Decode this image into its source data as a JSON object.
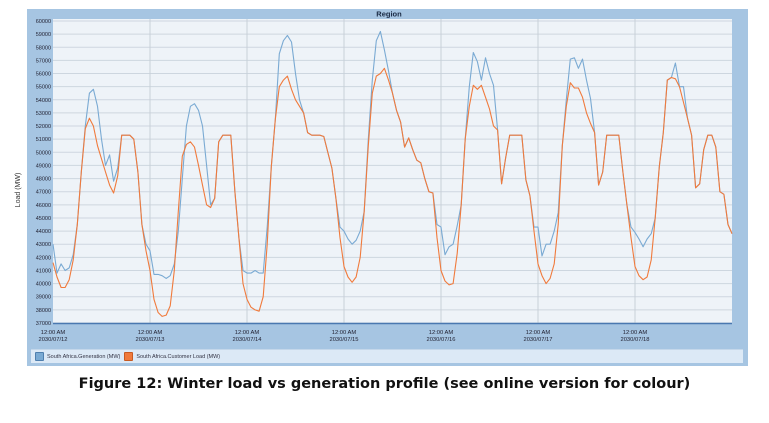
{
  "caption": "Figure 12: Winter load vs generation profile (see online version for colour)",
  "chart_data": {
    "type": "line",
    "title": "Region",
    "xlabel": "",
    "ylabel": "Load (MW)",
    "ylim": [
      37000,
      60000
    ],
    "y_ticks": [
      37000,
      38000,
      39000,
      40000,
      41000,
      42000,
      43000,
      44000,
      45000,
      46000,
      47000,
      48000,
      49000,
      50000,
      51000,
      52000,
      53000,
      54000,
      55000,
      56000,
      57000,
      58000,
      59000,
      60000
    ],
    "x_unit": "hours since 2030/07/12 12:00 AM",
    "xlim": [
      0,
      168
    ],
    "x_ticks": [
      {
        "hour": 0,
        "time": "12:00 AM",
        "date": "2030/07/12"
      },
      {
        "hour": 24,
        "time": "12:00 AM",
        "date": "2030/07/13"
      },
      {
        "hour": 48,
        "time": "12:00 AM",
        "date": "2030/07/14"
      },
      {
        "hour": 72,
        "time": "12:00 AM",
        "date": "2030/07/15"
      },
      {
        "hour": 96,
        "time": "12:00 AM",
        "date": "2030/07/16"
      },
      {
        "hour": 120,
        "time": "12:00 AM",
        "date": "2030/07/17"
      },
      {
        "hour": 144,
        "time": "12:00 AM",
        "date": "2030/07/18"
      }
    ],
    "grid": true,
    "legend_position": "bottom",
    "series": [
      {
        "name": "South Africa.Generation (MW)",
        "color": "#7aaad3",
        "values": [
          43000,
          40800,
          41500,
          41000,
          41200,
          42200,
          44500,
          48500,
          52000,
          54500,
          54800,
          53500,
          51000,
          49000,
          49800,
          47800,
          48800,
          51300,
          51300,
          51300,
          51000,
          48500,
          44500,
          43000,
          42500,
          40700,
          40700,
          40600,
          40400,
          40600,
          41500,
          44000,
          48000,
          52000,
          53500,
          53700,
          53200,
          52000,
          49000,
          46000,
          46500,
          50800,
          51300,
          51300,
          51300,
          47000,
          43500,
          41000,
          40800,
          40800,
          41000,
          40800,
          40800,
          44300,
          48900,
          52500,
          57500,
          58500,
          58900,
          58400,
          56000,
          54000,
          53000,
          51500,
          51300,
          51300,
          51300,
          51200,
          50000,
          48800,
          46500,
          44300,
          44000,
          43400,
          43000,
          43300,
          44000,
          45500,
          51000,
          55500,
          58500,
          59200,
          57800,
          56200,
          54500,
          53200,
          52300,
          50400,
          51100,
          50200,
          49400,
          49200,
          48000,
          47000,
          46900,
          44500,
          44300,
          42200,
          42800,
          43000,
          44400,
          46000,
          51000,
          55000,
          57600,
          56900,
          55500,
          57200,
          56000,
          55100,
          51700,
          47600,
          49600,
          51300,
          51300,
          51300,
          51300,
          47900,
          46700,
          44300,
          44300,
          42100,
          43000,
          43000,
          44000,
          45400,
          50500,
          54000,
          57100,
          57200,
          56400,
          57100,
          55500,
          54100,
          51500,
          47500,
          48500,
          51300,
          51300,
          51300,
          51300,
          48500,
          46000,
          44300,
          43900,
          43400,
          42800,
          43400,
          43800,
          45000,
          48900,
          51500,
          55500,
          55700,
          56800,
          55000,
          55000,
          52600,
          51300,
          47300,
          47600,
          50200,
          51300,
          51300,
          50400,
          47000,
          46800,
          44500,
          43800
        ]
      },
      {
        "name": "South Africa.Customer Load (MW)",
        "color": "#f07a3c",
        "values": [
          41600,
          40500,
          39700,
          39700,
          40300,
          41800,
          44500,
          48500,
          51800,
          52600,
          52000,
          50500,
          49500,
          48500,
          47500,
          46900,
          48200,
          51300,
          51300,
          51300,
          51000,
          48500,
          44500,
          42500,
          41000,
          38800,
          37800,
          37500,
          37600,
          38300,
          41000,
          45500,
          49700,
          50600,
          50800,
          50400,
          49000,
          47500,
          46000,
          45800,
          46500,
          50800,
          51300,
          51300,
          51300,
          47000,
          43500,
          40000,
          38800,
          38200,
          38000,
          37900,
          39000,
          43000,
          48900,
          52500,
          55000,
          55500,
          55800,
          54800,
          54000,
          53500,
          53000,
          51500,
          51300,
          51300,
          51300,
          51200,
          50000,
          48800,
          46500,
          43500,
          41300,
          40500,
          40100,
          40500,
          42000,
          45500,
          50500,
          54500,
          55800,
          56000,
          56400,
          55500,
          54500,
          53200,
          52300,
          50400,
          51100,
          50200,
          49400,
          49200,
          48000,
          47000,
          46900,
          43500,
          41000,
          40200,
          39900,
          40000,
          42300,
          46000,
          51000,
          53500,
          55100,
          54800,
          55100,
          54200,
          53300,
          52000,
          51700,
          47600,
          49600,
          51300,
          51300,
          51300,
          51300,
          47900,
          46700,
          44000,
          41500,
          40600,
          40000,
          40400,
          41500,
          44500,
          50500,
          53500,
          55300,
          54900,
          54900,
          54200,
          53000,
          52200,
          51500,
          47500,
          48500,
          51300,
          51300,
          51300,
          51300,
          48500,
          46000,
          43500,
          41300,
          40600,
          40300,
          40500,
          41800,
          45000,
          48900,
          51500,
          55500,
          55700,
          55600,
          55000,
          53800,
          52600,
          51300,
          47300,
          47600,
          50200,
          51300,
          51300,
          50400,
          47000,
          46800,
          44500,
          43800
        ]
      }
    ]
  }
}
